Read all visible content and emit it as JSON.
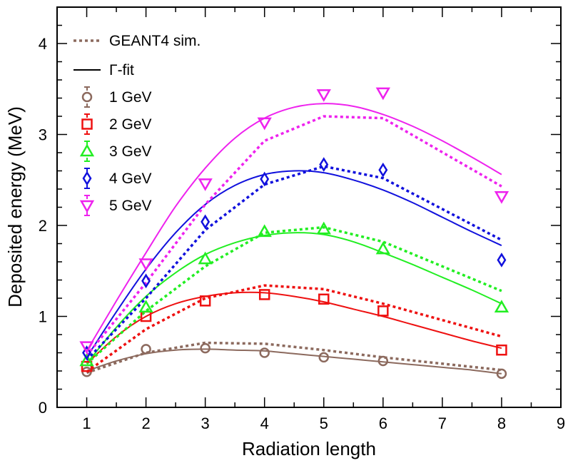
{
  "chart_data": {
    "type": "line",
    "xlabel": "Radiation length",
    "ylabel": "Deposited energy (MeV)",
    "xlim": [
      0.5,
      9
    ],
    "ylim": [
      0,
      4.4
    ],
    "xticks": [
      1,
      2,
      3,
      4,
      5,
      6,
      7,
      8,
      9
    ],
    "yticks": [
      0,
      1,
      2,
      3,
      4
    ],
    "legend": {
      "sim_label": "GEANT4 sim.",
      "fit_label": "Γ-fit"
    },
    "series": [
      {
        "name": "1 GeV",
        "color": "#8c6a5e",
        "marker": "circle",
        "x": [
          1,
          2,
          3,
          4,
          5,
          6,
          8
        ],
        "values": [
          0.39,
          0.64,
          0.65,
          0.6,
          0.55,
          0.51,
          0.37
        ],
        "sim": [
          0.38,
          0.6,
          0.71,
          0.7,
          0.63,
          0.55,
          0.41
        ],
        "fit": {
          "x": [
            1,
            1.5,
            2,
            2.5,
            3,
            3.5,
            4,
            4.5,
            5,
            5.5,
            6,
            6.5,
            7,
            7.5,
            8
          ],
          "y": [
            0.4,
            0.51,
            0.59,
            0.63,
            0.64,
            0.63,
            0.62,
            0.59,
            0.56,
            0.53,
            0.5,
            0.47,
            0.44,
            0.41,
            0.37
          ]
        }
      },
      {
        "name": "2 GeV",
        "color": "#ee1111",
        "marker": "square",
        "x": [
          1,
          2,
          3,
          4,
          5,
          6,
          8
        ],
        "values": [
          0.45,
          1.0,
          1.17,
          1.24,
          1.19,
          1.06,
          0.63
        ],
        "sim": [
          0.39,
          0.86,
          1.2,
          1.34,
          1.3,
          1.14,
          0.78
        ],
        "fit": {
          "x": [
            1,
            1.5,
            2,
            2.5,
            3,
            3.5,
            4,
            4.5,
            5,
            5.5,
            6,
            6.5,
            7,
            7.5,
            8
          ],
          "y": [
            0.48,
            0.78,
            1.0,
            1.14,
            1.22,
            1.26,
            1.26,
            1.22,
            1.16,
            1.08,
            1.0,
            0.91,
            0.82,
            0.73,
            0.65
          ]
        }
      },
      {
        "name": "3 GeV",
        "color": "#22ee22",
        "marker": "triangle-up",
        "x": [
          1,
          2,
          3,
          4,
          5,
          6,
          8
        ],
        "values": [
          0.51,
          1.1,
          1.63,
          1.93,
          1.96,
          1.74,
          1.1
        ],
        "sim": [
          0.48,
          1.06,
          1.55,
          1.92,
          1.98,
          1.82,
          1.28
        ],
        "fit": {
          "x": [
            1,
            1.5,
            2,
            2.5,
            3,
            3.5,
            4,
            4.5,
            5,
            5.5,
            6,
            6.5,
            7,
            7.5,
            8
          ],
          "y": [
            0.48,
            0.88,
            1.22,
            1.48,
            1.68,
            1.81,
            1.89,
            1.92,
            1.9,
            1.82,
            1.7,
            1.57,
            1.43,
            1.29,
            1.14
          ]
        }
      },
      {
        "name": "4 GeV",
        "color": "#1111dd",
        "marker": "diamond",
        "x": [
          1,
          2,
          3,
          4,
          5,
          6,
          8
        ],
        "values": [
          0.6,
          1.39,
          2.04,
          2.51,
          2.67,
          2.61,
          1.62
        ],
        "sim": [
          0.52,
          1.2,
          1.95,
          2.45,
          2.65,
          2.52,
          1.84
        ],
        "fit": {
          "x": [
            1,
            1.5,
            2,
            2.5,
            3,
            3.5,
            4,
            4.5,
            5,
            5.5,
            6,
            6.5,
            7,
            7.5,
            8
          ],
          "y": [
            0.55,
            1.05,
            1.52,
            1.92,
            2.23,
            2.44,
            2.56,
            2.6,
            2.58,
            2.5,
            2.39,
            2.25,
            2.09,
            1.93,
            1.78
          ]
        }
      },
      {
        "name": "5 GeV",
        "color": "#ee22ee",
        "marker": "triangle-down",
        "x": [
          1,
          2,
          3,
          4,
          5,
          6,
          8
        ],
        "values": [
          0.67,
          1.58,
          2.46,
          3.13,
          3.44,
          3.46,
          2.32
        ],
        "sim": [
          0.57,
          1.37,
          2.23,
          2.93,
          3.2,
          3.18,
          2.43
        ],
        "fit": {
          "x": [
            1,
            1.5,
            2,
            2.5,
            3,
            3.5,
            4,
            4.5,
            5,
            5.5,
            6,
            6.5,
            7,
            7.5,
            8
          ],
          "y": [
            0.62,
            1.17,
            1.7,
            2.21,
            2.63,
            2.96,
            3.18,
            3.3,
            3.34,
            3.31,
            3.22,
            3.09,
            2.93,
            2.75,
            2.56
          ]
        }
      }
    ]
  }
}
